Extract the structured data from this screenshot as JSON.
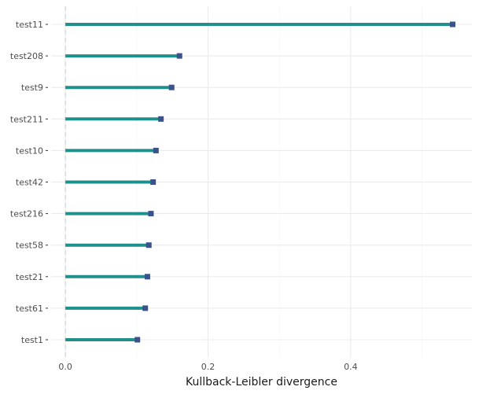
{
  "chart_data": {
    "type": "bar",
    "orientation": "horizontal",
    "style": "lollipop",
    "title": "",
    "xlabel": "Kullback-Leibler divergence",
    "ylabel": "",
    "xlim": [
      -0.02,
      0.57
    ],
    "xticks": [
      0.0,
      0.2,
      0.4
    ],
    "xtick_labels": [
      "0.0",
      "0.2",
      "0.4"
    ],
    "grid": true,
    "reference_line_x": 0.0,
    "categories": [
      "test11",
      "test208",
      "test9",
      "test211",
      "test10",
      "test42",
      "test216",
      "test58",
      "test21",
      "test61",
      "test1"
    ],
    "values": [
      0.543,
      0.16,
      0.149,
      0.134,
      0.127,
      0.123,
      0.12,
      0.117,
      0.115,
      0.112,
      0.101
    ],
    "colors": {
      "line": "#21908c",
      "marker": "#3b528b",
      "grid_major": "#ebebeb",
      "grid_minor": "#f4f4f4",
      "reference": "#d9d9d9"
    }
  }
}
